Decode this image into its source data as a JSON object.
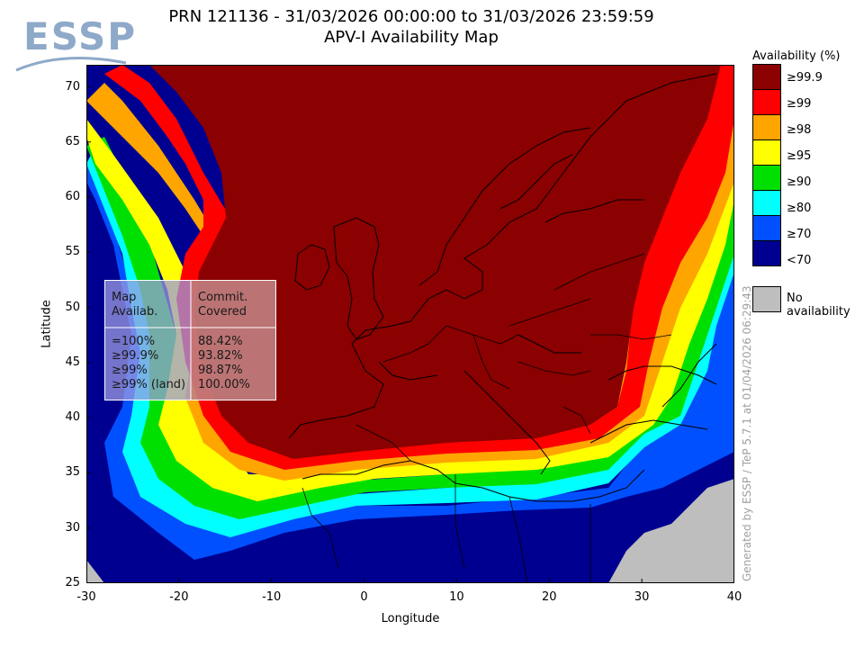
{
  "header": {
    "logo_text": "ESSP",
    "title_line1": "PRN 121136 - 31/03/2026 00:00:00 to 31/03/2026 23:59:59",
    "title_line2": "APV-I Availability Map"
  },
  "axes": {
    "xlabel": "Longitude",
    "ylabel": "Latitude",
    "x_ticks": [
      "-30",
      "-20",
      "-10",
      "0",
      "10",
      "20",
      "30",
      "40"
    ],
    "y_ticks": [
      "70",
      "65",
      "60",
      "55",
      "50",
      "45",
      "40",
      "35",
      "30",
      "25"
    ],
    "x_range": [
      -30,
      40
    ],
    "y_range": [
      25,
      72
    ]
  },
  "stats_table": {
    "header_left": [
      "Map",
      "Availab."
    ],
    "header_right": [
      "Commit.",
      "Covered"
    ],
    "rows": [
      {
        "level": "=100%",
        "covered": "88.42%"
      },
      {
        "level": "≥99.9%",
        "covered": "93.82%"
      },
      {
        "level": "≥99%",
        "covered": "98.87%"
      },
      {
        "level": "≥99% (land)",
        "covered": "100.00%"
      }
    ]
  },
  "legend": {
    "title": "Availability (%)",
    "items": [
      {
        "label": "≥99.9",
        "color": "#8b0000"
      },
      {
        "label": "≥99",
        "color": "#ff0000"
      },
      {
        "label": "≥98",
        "color": "#ffa500"
      },
      {
        "label": "≥95",
        "color": "#ffff00"
      },
      {
        "label": "≥90",
        "color": "#00e000"
      },
      {
        "label": "≥80",
        "color": "#00ffff"
      },
      {
        "label": "≥70",
        "color": "#0050ff"
      },
      {
        "label": "<70",
        "color": "#000090"
      }
    ],
    "no_availability": {
      "label": "No availability",
      "color": "#bebebe"
    }
  },
  "footer": {
    "generated_text": "Generated by ESSP / TeP 5.7.1 at 01/04/2026 06:29:43"
  }
}
